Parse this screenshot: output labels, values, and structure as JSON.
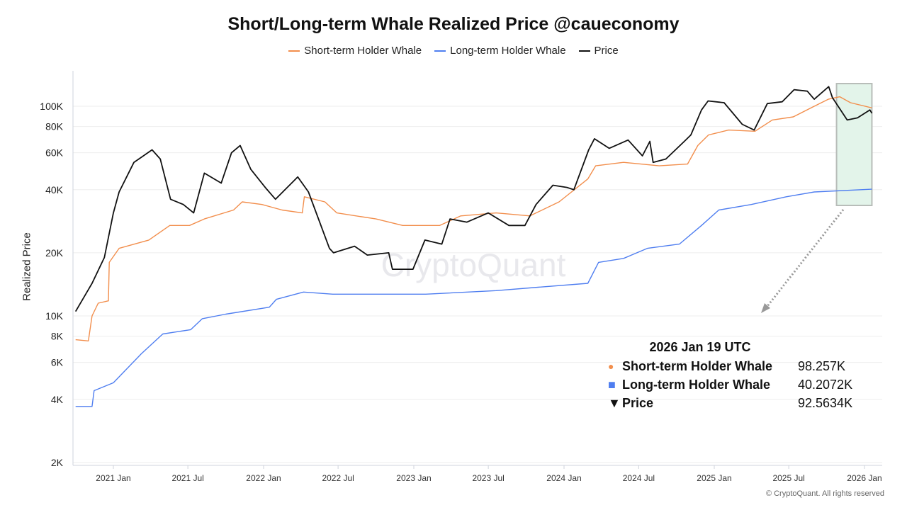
{
  "chart_data": {
    "type": "line",
    "title": "Short/Long-term Whale Realized Price @caueconomy",
    "xlabel": "",
    "ylabel": "Realized Price",
    "yscale": "log",
    "ylim": [
      2000,
      160000
    ],
    "xlim": [
      "2020-09-20",
      "2026-02-10"
    ],
    "grid": true,
    "legend_position": "top",
    "y_ticks": [
      {
        "value": 2000,
        "label": "2K"
      },
      {
        "value": 4000,
        "label": "4K"
      },
      {
        "value": 6000,
        "label": "6K"
      },
      {
        "value": 8000,
        "label": "8K"
      },
      {
        "value": 10000,
        "label": "10K"
      },
      {
        "value": 20000,
        "label": "20K"
      },
      {
        "value": 40000,
        "label": "40K"
      },
      {
        "value": 60000,
        "label": "60K"
      },
      {
        "value": 80000,
        "label": "80K"
      },
      {
        "value": 100000,
        "label": "100K"
      }
    ],
    "x_ticks": [
      {
        "value": "2021-01-01",
        "label": "2021 Jan"
      },
      {
        "value": "2021-07-01",
        "label": "2021 Jul"
      },
      {
        "value": "2022-01-01",
        "label": "2022 Jan"
      },
      {
        "value": "2022-07-01",
        "label": "2022 Jul"
      },
      {
        "value": "2023-01-01",
        "label": "2023 Jan"
      },
      {
        "value": "2023-07-01",
        "label": "2023 Jul"
      },
      {
        "value": "2024-01-01",
        "label": "2024 Jan"
      },
      {
        "value": "2024-07-01",
        "label": "2024 Jul"
      },
      {
        "value": "2025-01-01",
        "label": "2025 Jan"
      },
      {
        "value": "2025-07-01",
        "label": "2025 Jul"
      },
      {
        "value": "2026-01-01",
        "label": "2026 Jan"
      }
    ],
    "series": [
      {
        "name": "Short-term Holder Whale",
        "color": "#f28e4c",
        "points": [
          [
            "2020-10-01",
            7700
          ],
          [
            "2020-11-01",
            7600
          ],
          [
            "2020-11-10",
            10000
          ],
          [
            "2020-11-25",
            11500
          ],
          [
            "2020-12-20",
            11800
          ],
          [
            "2020-12-22",
            18000
          ],
          [
            "2021-01-15",
            21000
          ],
          [
            "2021-03-28",
            23000
          ],
          [
            "2021-05-18",
            27000
          ],
          [
            "2021-07-05",
            27000
          ],
          [
            "2021-08-10",
            29000
          ],
          [
            "2021-10-20",
            32000
          ],
          [
            "2021-11-10",
            35000
          ],
          [
            "2021-12-28",
            34000
          ],
          [
            "2022-02-15",
            32000
          ],
          [
            "2022-04-05",
            31000
          ],
          [
            "2022-04-10",
            37000
          ],
          [
            "2022-05-30",
            35000
          ],
          [
            "2022-06-28",
            31000
          ],
          [
            "2022-10-01",
            29000
          ],
          [
            "2022-12-05",
            27000
          ],
          [
            "2023-03-05",
            27000
          ],
          [
            "2023-04-25",
            30000
          ],
          [
            "2023-07-20",
            31000
          ],
          [
            "2023-10-10",
            30000
          ],
          [
            "2023-12-20",
            35000
          ],
          [
            "2024-02-28",
            45000
          ],
          [
            "2024-03-18",
            52000
          ],
          [
            "2024-05-25",
            54000
          ],
          [
            "2024-08-20",
            52000
          ],
          [
            "2024-10-28",
            53000
          ],
          [
            "2024-11-22",
            65000
          ],
          [
            "2024-12-18",
            73000
          ],
          [
            "2025-02-05",
            77000
          ],
          [
            "2025-04-10",
            76000
          ],
          [
            "2025-05-22",
            86000
          ],
          [
            "2025-07-12",
            89000
          ],
          [
            "2025-09-01",
            100000
          ],
          [
            "2025-10-05",
            108000
          ],
          [
            "2025-11-02",
            111000
          ],
          [
            "2025-11-28",
            104000
          ],
          [
            "2026-01-19",
            98257
          ]
        ]
      },
      {
        "name": "Long-term Holder Whale",
        "color": "#4f7ef0",
        "points": [
          [
            "2020-10-01",
            3700
          ],
          [
            "2020-11-10",
            3700
          ],
          [
            "2020-11-15",
            4400
          ],
          [
            "2021-01-01",
            4800
          ],
          [
            "2021-03-10",
            6600
          ],
          [
            "2021-05-01",
            8200
          ],
          [
            "2021-07-08",
            8600
          ],
          [
            "2021-08-05",
            9700
          ],
          [
            "2021-10-01",
            10200
          ],
          [
            "2022-01-15",
            11000
          ],
          [
            "2022-02-01",
            12000
          ],
          [
            "2022-04-08",
            13000
          ],
          [
            "2022-06-18",
            12700
          ],
          [
            "2023-01-30",
            12700
          ],
          [
            "2023-07-20",
            13200
          ],
          [
            "2023-10-30",
            13700
          ],
          [
            "2024-02-28",
            14300
          ],
          [
            "2024-03-25",
            18000
          ],
          [
            "2024-05-25",
            18800
          ],
          [
            "2024-07-22",
            21000
          ],
          [
            "2024-10-08",
            22000
          ],
          [
            "2024-12-01",
            27000
          ],
          [
            "2025-01-12",
            32000
          ],
          [
            "2025-04-01",
            34000
          ],
          [
            "2025-06-25",
            37000
          ],
          [
            "2025-09-01",
            39000
          ],
          [
            "2026-01-19",
            40207.2
          ]
        ]
      },
      {
        "name": "Price",
        "color": "#111111",
        "points": [
          [
            "2020-10-01",
            10500
          ],
          [
            "2020-11-10",
            14300
          ],
          [
            "2020-12-10",
            19000
          ],
          [
            "2021-01-01",
            31000
          ],
          [
            "2021-01-15",
            39000
          ],
          [
            "2021-02-20",
            54000
          ],
          [
            "2021-03-15",
            58000
          ],
          [
            "2021-04-05",
            62000
          ],
          [
            "2021-04-25",
            56000
          ],
          [
            "2021-05-20",
            36000
          ],
          [
            "2021-06-20",
            34000
          ],
          [
            "2021-07-15",
            31000
          ],
          [
            "2021-08-10",
            48000
          ],
          [
            "2021-09-20",
            43000
          ],
          [
            "2021-10-15",
            60000
          ],
          [
            "2021-11-05",
            65000
          ],
          [
            "2021-12-01",
            50000
          ],
          [
            "2022-01-05",
            41000
          ],
          [
            "2022-01-30",
            36000
          ],
          [
            "2022-03-25",
            46000
          ],
          [
            "2022-04-20",
            39000
          ],
          [
            "2022-06-10",
            21000
          ],
          [
            "2022-06-20",
            20000
          ],
          [
            "2022-08-10",
            21500
          ],
          [
            "2022-09-10",
            19500
          ],
          [
            "2022-11-01",
            20000
          ],
          [
            "2022-11-10",
            16700
          ],
          [
            "2022-12-30",
            16700
          ],
          [
            "2023-01-28",
            23000
          ],
          [
            "2023-03-10",
            22000
          ],
          [
            "2023-03-30",
            29000
          ],
          [
            "2023-05-10",
            28000
          ],
          [
            "2023-07-01",
            31000
          ],
          [
            "2023-08-20",
            27000
          ],
          [
            "2023-09-28",
            27000
          ],
          [
            "2023-10-25",
            34000
          ],
          [
            "2023-12-05",
            42000
          ],
          [
            "2024-01-08",
            41000
          ],
          [
            "2024-01-25",
            40000
          ],
          [
            "2024-03-01",
            62000
          ],
          [
            "2024-03-15",
            70000
          ],
          [
            "2024-04-20",
            63000
          ],
          [
            "2024-06-05",
            69000
          ],
          [
            "2024-07-10",
            58000
          ],
          [
            "2024-07-28",
            68000
          ],
          [
            "2024-08-05",
            54000
          ],
          [
            "2024-09-05",
            56000
          ],
          [
            "2024-10-20",
            68000
          ],
          [
            "2024-11-05",
            73000
          ],
          [
            "2024-12-01",
            96000
          ],
          [
            "2024-12-17",
            106000
          ],
          [
            "2025-01-25",
            104000
          ],
          [
            "2025-03-10",
            82000
          ],
          [
            "2025-04-08",
            77000
          ],
          [
            "2025-05-10",
            103000
          ],
          [
            "2025-06-15",
            105000
          ],
          [
            "2025-07-14",
            120000
          ],
          [
            "2025-08-15",
            118000
          ],
          [
            "2025-09-01",
            108000
          ],
          [
            "2025-10-06",
            124000
          ],
          [
            "2025-10-15",
            110000
          ],
          [
            "2025-11-20",
            86000
          ],
          [
            "2025-12-15",
            88000
          ],
          [
            "2026-01-14",
            96000
          ],
          [
            "2026-01-19",
            92563.4
          ]
        ]
      }
    ],
    "annotations": {
      "highlight_range": [
        "2025-11-01",
        "2026-01-19"
      ],
      "highlight_color": "#e3f4ea",
      "watermark": "CryptoQuant"
    }
  },
  "legend": [
    {
      "label": "Short-term Holder Whale",
      "color": "#f28e4c"
    },
    {
      "label": "Long-term Holder Whale",
      "color": "#4f7ef0"
    },
    {
      "label": "Price",
      "color": "#111111"
    }
  ],
  "tooltip": {
    "date": "2026 Jan 19 UTC",
    "rows": [
      {
        "label": "Short-term Holder Whale",
        "value": "98.257K",
        "marker": "●",
        "color": "#f28e4c"
      },
      {
        "label": "Long-term Holder Whale",
        "value": "40.2072K",
        "marker": "■",
        "color": "#4f7ef0"
      },
      {
        "label": "Price",
        "value": "92.5634K",
        "marker": "▼",
        "color": "#111111"
      }
    ]
  },
  "copyright": "© CryptoQuant. All rights reserved"
}
